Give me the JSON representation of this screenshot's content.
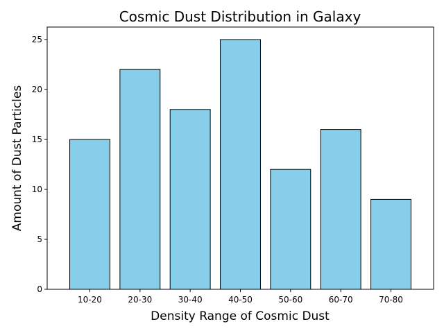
{
  "chart_data": {
    "type": "bar",
    "title": "Cosmic Dust Distribution in Galaxy",
    "xlabel": "Density Range of Cosmic Dust",
    "ylabel": "Amount of Dust Particles",
    "categories": [
      "10-20",
      "20-30",
      "30-40",
      "40-50",
      "50-60",
      "60-70",
      "70-80"
    ],
    "values": [
      15,
      22,
      18,
      25,
      12,
      16,
      9
    ],
    "ylim": [
      0,
      26.25
    ],
    "yticks": [
      0,
      5,
      10,
      15,
      20,
      25
    ],
    "grid": false,
    "bar_color": "#87CEEB",
    "bar_edge_color": "#000000"
  }
}
